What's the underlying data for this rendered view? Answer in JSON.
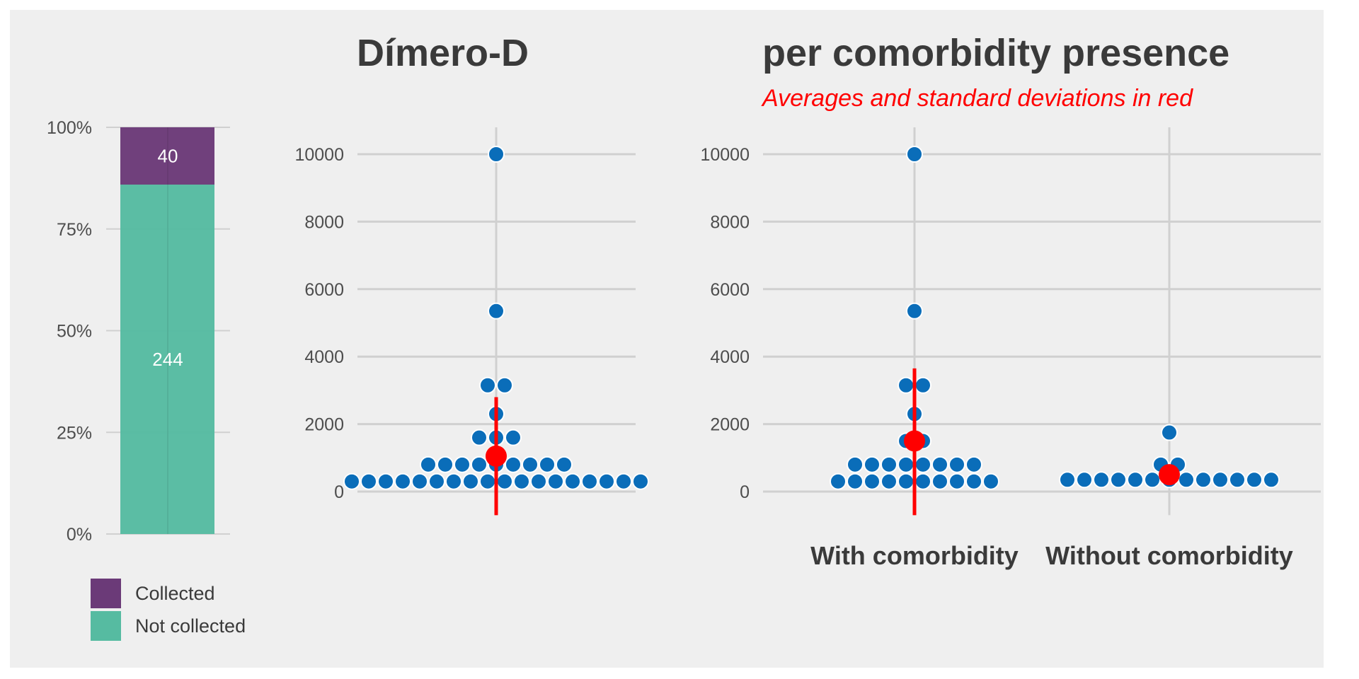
{
  "colors": {
    "background": "#efefef",
    "grid": "#d0d0d0",
    "collected": "#6b3a78",
    "not_collected": "#56bba1",
    "dots": "#0a6db9",
    "summary": "#ff0000"
  },
  "titles": {
    "left": "Dímero-D",
    "right": "per comorbidity presence",
    "subtitle": "Averages and standard deviations in red"
  },
  "chart_data": [
    {
      "type": "bar",
      "stacked": true,
      "position": "fill",
      "yticks": [
        "0%",
        "25%",
        "50%",
        "75%",
        "100%"
      ],
      "series": [
        {
          "name": "Not collected",
          "value": 244,
          "color": "#56bba1"
        },
        {
          "name": "Collected",
          "value": 40,
          "color": "#6b3a78"
        }
      ],
      "legend": [
        "Collected",
        "Not collected"
      ],
      "legend_position": "bottom"
    },
    {
      "type": "scatter",
      "subtype": "dotplot",
      "title": "Dímero-D",
      "ylim": [
        -700,
        11000
      ],
      "yticks": [
        0,
        2000,
        4000,
        6000,
        8000,
        10000
      ],
      "values": [
        300,
        300,
        300,
        300,
        300,
        300,
        300,
        300,
        300,
        300,
        300,
        300,
        300,
        300,
        300,
        300,
        300,
        300,
        800,
        800,
        800,
        800,
        800,
        800,
        800,
        800,
        800,
        1600,
        1600,
        1600,
        2300,
        3150,
        3150,
        5350,
        10000
      ],
      "mean": 1050,
      "sd_range": [
        -700,
        2800
      ]
    },
    {
      "type": "scatter",
      "subtype": "dotplot",
      "title": "per comorbidity presence",
      "subtitle": "Averages and standard deviations in red",
      "ylim": [
        -700,
        11000
      ],
      "yticks": [
        0,
        2000,
        4000,
        6000,
        8000,
        10000
      ],
      "categories": [
        "With comorbidity",
        "Without comorbidity"
      ],
      "groups": [
        {
          "name": "With comorbidity",
          "values": [
            300,
            300,
            300,
            300,
            300,
            300,
            300,
            300,
            300,
            300,
            800,
            800,
            800,
            800,
            800,
            800,
            800,
            800,
            1500,
            1500,
            2300,
            3150,
            3150,
            5350,
            10000
          ],
          "mean": 1500,
          "sd_range": [
            -700,
            3650
          ]
        },
        {
          "name": "Without comorbidity",
          "values": [
            350,
            350,
            350,
            350,
            350,
            350,
            350,
            350,
            350,
            350,
            350,
            350,
            350,
            800,
            800,
            1750
          ],
          "mean": 500,
          "sd_range": [
            250,
            750
          ]
        }
      ]
    }
  ]
}
